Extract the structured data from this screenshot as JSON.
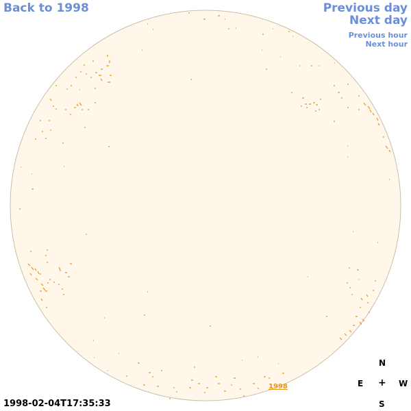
{
  "nav": {
    "back_label": "Back to 1998",
    "prev_day_label": "Previous day",
    "next_day_label": "Next day",
    "prev_hour_label": "Previous hour",
    "next_hour_label": "Next hour"
  },
  "compass": {
    "n": "N",
    "e": "E",
    "plus": "+",
    "w": "W",
    "s": "S"
  },
  "timestamp": "1998-02-04T17:35:33",
  "year_link": "1998",
  "colors": {
    "disk_fill": "#fff8ea",
    "disk_edge": "#c8bfa8",
    "feature": "#e8941c",
    "nav": "#6a8fd6"
  }
}
